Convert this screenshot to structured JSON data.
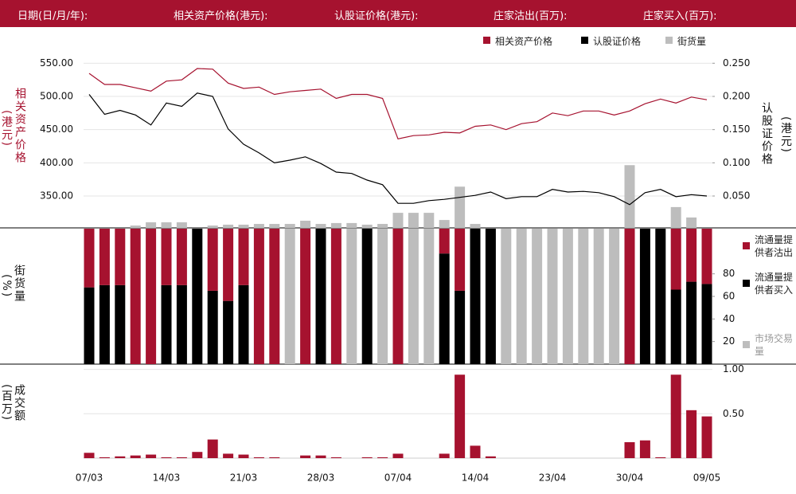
{
  "header": {
    "labels": [
      "日期(日/月/年):",
      "相关资产价格(港元):",
      "认股证价格(港元):",
      "庄家沽出(百万):",
      "庄家买入(百万):"
    ]
  },
  "chart_data": [
    {
      "type": "line",
      "ylabel": "相关资产价格",
      "ylabel_unit": "(港元)",
      "y2label": "认股证价格",
      "y2label_unit": "(港元)",
      "ylim": [
        302,
        572
      ],
      "yticks": [
        {
          "value": 350,
          "label": "350.00"
        },
        {
          "value": 400,
          "label": "400.00"
        },
        {
          "value": 450,
          "label": "450.00"
        },
        {
          "value": 500,
          "label": "500.00"
        },
        {
          "value": 550,
          "label": "550.00"
        }
      ],
      "y2lim": [
        0.002,
        0.272
      ],
      "y2ticks": [
        {
          "value": 0.05,
          "label": "0.050"
        },
        {
          "value": 0.1,
          "label": "0.100"
        },
        {
          "value": 0.15,
          "label": "0.150"
        },
        {
          "value": 0.2,
          "label": "0.200"
        },
        {
          "value": 0.25,
          "label": "0.250"
        }
      ],
      "y3lim": [
        0,
        100
      ],
      "grid": true,
      "legend": "top-right",
      "series": [
        {
          "name": "相关资产价格",
          "color": "#a6122f",
          "values": [
            534.6,
            518,
            518,
            513,
            508,
            523,
            525,
            542,
            541,
            520,
            512,
            514,
            503,
            507,
            509,
            511,
            497,
            503,
            503,
            497,
            436,
            441,
            442,
            446,
            445,
            455,
            457,
            450,
            459,
            462,
            475,
            471,
            478,
            478,
            472,
            478,
            489,
            496,
            490,
            499,
            495
          ]
        },
        {
          "name": "认股证价格",
          "color": "#000000",
          "axis": "y2",
          "values": [
            0.203,
            0.173,
            0.179,
            0.172,
            0.157,
            0.19,
            0.185,
            0.205,
            0.2,
            0.151,
            0.128,
            0.115,
            0.1,
            0.104,
            0.109,
            0.099,
            0.086,
            0.084,
            0.074,
            0.067,
            0.039,
            0.039,
            0.043,
            0.045,
            0.048,
            0.051,
            0.056,
            0.046,
            0.049,
            0.049,
            0.06,
            0.056,
            0.057,
            0.055,
            0.049,
            0.037,
            0.055,
            0.06,
            0.049,
            0.052,
            0.05
          ]
        },
        {
          "name": "街货量",
          "type": "bar",
          "color": "#bdbdbd",
          "axis": "y3",
          "values": [
            0,
            0,
            0,
            1.3,
            3.1,
            3.1,
            3.1,
            0,
            1.3,
            1.8,
            1.8,
            2.2,
            2.2,
            2.2,
            4,
            2.2,
            2.7,
            2.7,
            1.8,
            2.2,
            8.4,
            8.4,
            8.4,
            4.4,
            23,
            2.2,
            0,
            0,
            0,
            0,
            0,
            0,
            0,
            0,
            0,
            35,
            0,
            0,
            11.6,
            5.8,
            0
          ]
        }
      ]
    },
    {
      "type": "bar",
      "stacked": true,
      "ylabel": "街货量",
      "ylabel_unit": "(%)",
      "ylim": [
        0,
        120
      ],
      "yticks": [
        20,
        40,
        60,
        80
      ],
      "legend": "right",
      "series": [
        {
          "name": "流通量提供者沽出",
          "color": "#a6122f",
          "values": [
            52,
            50,
            50,
            120,
            120,
            50,
            50,
            0,
            55,
            64,
            50,
            120,
            120,
            0,
            120,
            0,
            120,
            0,
            0,
            0,
            120,
            0,
            0,
            22,
            55,
            0,
            0,
            0,
            0,
            0,
            0,
            0,
            0,
            0,
            0,
            120,
            0,
            0,
            54,
            47,
            49
          ]
        },
        {
          "name": "流通量提供者买入",
          "color": "#000000",
          "values": [
            68,
            70,
            70,
            0,
            0,
            70,
            70,
            120,
            65,
            56,
            70,
            0,
            0,
            0,
            0,
            120,
            0,
            0,
            120,
            0,
            0,
            0,
            0,
            98,
            65,
            120,
            120,
            0,
            0,
            0,
            0,
            0,
            0,
            0,
            0,
            0,
            120,
            120,
            66,
            73,
            71
          ]
        },
        {
          "name": "市场交易量",
          "color": "#bdbdbd",
          "values": [
            0,
            0,
            0,
            0,
            0,
            0,
            0,
            0,
            0,
            0,
            0,
            0,
            0,
            120,
            0,
            0,
            0,
            120,
            0,
            120,
            0,
            120,
            120,
            0,
            0,
            0,
            0,
            120,
            120,
            120,
            120,
            120,
            120,
            120,
            120,
            0,
            0,
            0,
            0,
            0,
            0
          ]
        }
      ]
    },
    {
      "type": "bar",
      "ylabel": "成交额",
      "ylabel_unit": "(百万)",
      "ylim": [
        0,
        1.05
      ],
      "yticks": [
        {
          "value": 0.5,
          "label": "0.50"
        },
        {
          "value": 1,
          "label": "1.00"
        }
      ],
      "grid": true,
      "color": "#a6122f",
      "categories": [
        "07/03",
        null,
        null,
        null,
        null,
        "14/03",
        null,
        null,
        null,
        null,
        "21/03",
        null,
        null,
        null,
        null,
        "28/03",
        null,
        null,
        null,
        null,
        "07/04",
        null,
        null,
        null,
        null,
        "14/04",
        null,
        null,
        null,
        null,
        "23/04",
        null,
        null,
        null,
        null,
        "30/04",
        null,
        null,
        null,
        null,
        "09/05"
      ],
      "values": [
        0.06,
        0.01,
        0.02,
        0.03,
        0.04,
        0.01,
        0.01,
        0.07,
        0.21,
        0.05,
        0.04,
        0.01,
        0.01,
        0,
        0.03,
        0.03,
        0.01,
        0,
        0.01,
        0.01,
        0.05,
        0,
        0,
        0.05,
        0.94,
        0.14,
        0.02,
        0,
        0,
        0,
        0,
        0,
        0,
        0,
        0,
        0.18,
        0.2,
        0.01,
        0.94,
        0.54,
        0.47
      ]
    }
  ]
}
